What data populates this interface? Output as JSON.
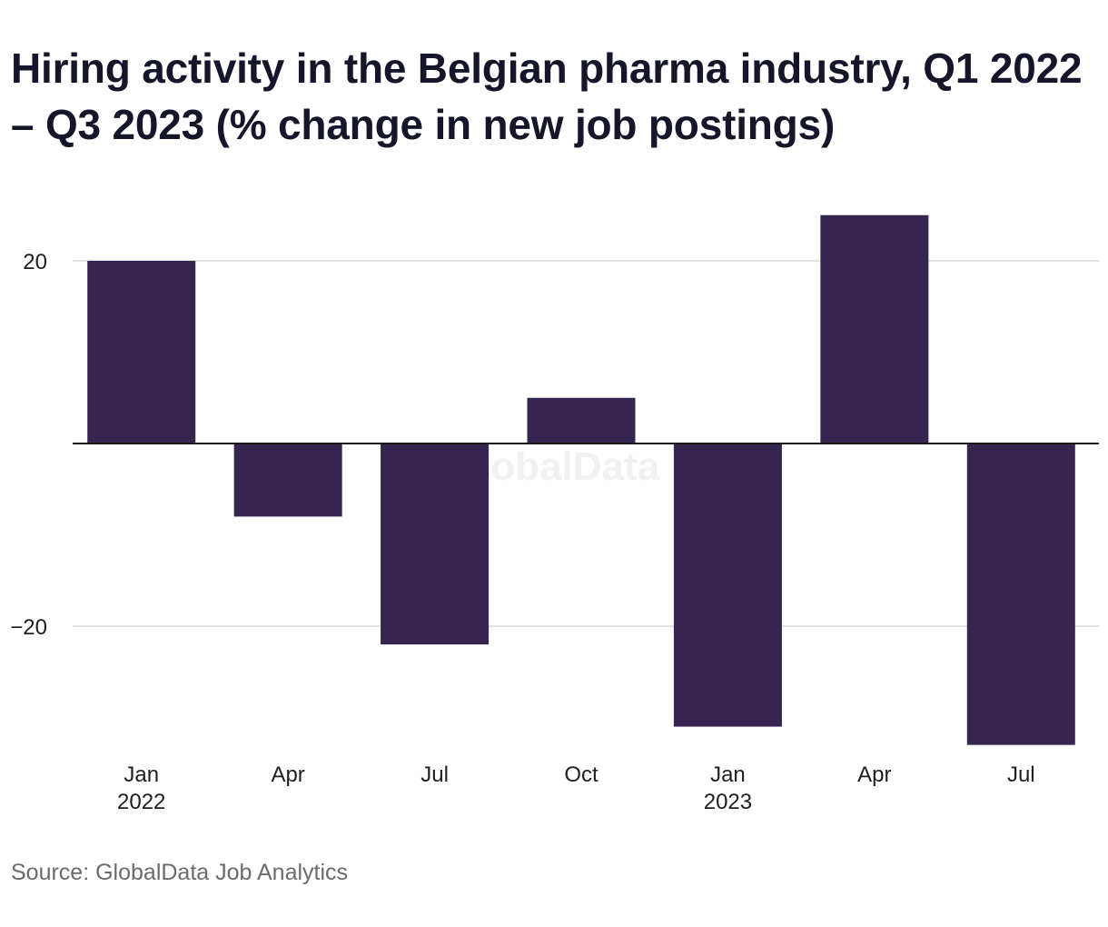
{
  "title": "Hiring activity in the Belgian pharma industry, Q1 2022 – Q3 2023 (% change in new job postings)",
  "source": "Source: GlobalData Job Analytics",
  "watermark": "GlobalData",
  "colors": {
    "bar": "#362551",
    "grid": "#d9d9d9",
    "zero_line": "#1a1a1a"
  },
  "chart_data": {
    "type": "bar",
    "categories": [
      "Jan 2022",
      "Apr",
      "Jul",
      "Oct",
      "Jan 2023",
      "Apr",
      "Jul"
    ],
    "tick_labels": [
      [
        "Jan",
        "2022"
      ],
      [
        "Apr"
      ],
      [
        "Jul"
      ],
      [
        "Oct"
      ],
      [
        "Jan",
        "2023"
      ],
      [
        "Apr"
      ],
      [
        "Jul"
      ]
    ],
    "values": [
      20,
      -8,
      -22,
      5,
      -31,
      25,
      -33
    ],
    "yticks": [
      20,
      -20
    ],
    "ytick_labels": [
      "20",
      "−20"
    ],
    "ylim": [
      -35,
      25
    ],
    "grid": true,
    "legend": "none"
  }
}
